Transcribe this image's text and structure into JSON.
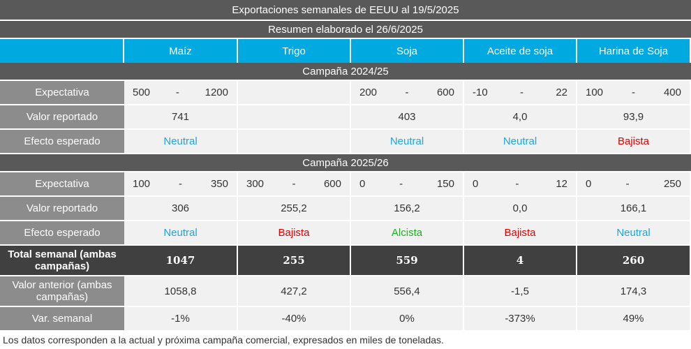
{
  "title": "Exportaciones semanales de EEUU al 19/5/2025",
  "subtitle": "Resumen elaborado el 26/6/2025",
  "columns": [
    "Maíz",
    "Trigo",
    "Soja",
    "Aceite de soja",
    "Harina de Soja"
  ],
  "effect_colors": {
    "Neutral": "#1ba6dc",
    "Bajista": "#e00000",
    "Alcista": "#1fb01f"
  },
  "sections": [
    {
      "campaign": "Campaña 2024/25",
      "rows": [
        {
          "label": "Expectativa",
          "kind": "range",
          "cells": [
            [
              "500",
              "-",
              "1200"
            ],
            null,
            [
              "200",
              "-",
              "600"
            ],
            [
              "-10",
              "-",
              "22"
            ],
            [
              "100",
              "-",
              "400"
            ]
          ]
        },
        {
          "label": "Valor reportado",
          "kind": "value",
          "cells": [
            "741",
            null,
            "403",
            "4,0",
            "93,9"
          ]
        },
        {
          "label": "Efecto esperado",
          "kind": "effect",
          "cells": [
            "Neutral",
            null,
            "Neutral",
            "Neutral",
            "Bajista"
          ]
        }
      ]
    },
    {
      "campaign": "Campaña 2025/26",
      "rows": [
        {
          "label": "Expectativa",
          "kind": "range",
          "cells": [
            [
              "100",
              "-",
              "350"
            ],
            [
              "300",
              "-",
              "600"
            ],
            [
              "0",
              "-",
              "150"
            ],
            [
              "0",
              "-",
              "12"
            ],
            [
              "0",
              "-",
              "250"
            ]
          ]
        },
        {
          "label": "Valor reportado",
          "kind": "value",
          "cells": [
            "306",
            "255,2",
            "156,2",
            "0,0",
            "166,1"
          ]
        },
        {
          "label": "Efecto esperado",
          "kind": "effect",
          "cells": [
            "Neutral",
            "Bajista",
            "Alcista",
            "Bajista",
            "Neutral"
          ]
        }
      ]
    }
  ],
  "summary_rows": [
    {
      "label": "Total semanal (ambas campañas)",
      "kind": "total",
      "cells": [
        "1047",
        "255",
        "559",
        "4",
        "260"
      ]
    },
    {
      "label": "Valor anterior (ambas campañas)",
      "kind": "value",
      "cells": [
        "1058,8",
        "427,2",
        "556,4",
        "-1,5",
        "174,3"
      ]
    },
    {
      "label": "Var. semanal",
      "kind": "value",
      "cells": [
        "-1%",
        "-40%",
        "0%",
        "-373%",
        "49%"
      ]
    }
  ],
  "footnote": "Los datos corresponden a la actual y próxima campaña comercial, expresados en miles de toneladas."
}
